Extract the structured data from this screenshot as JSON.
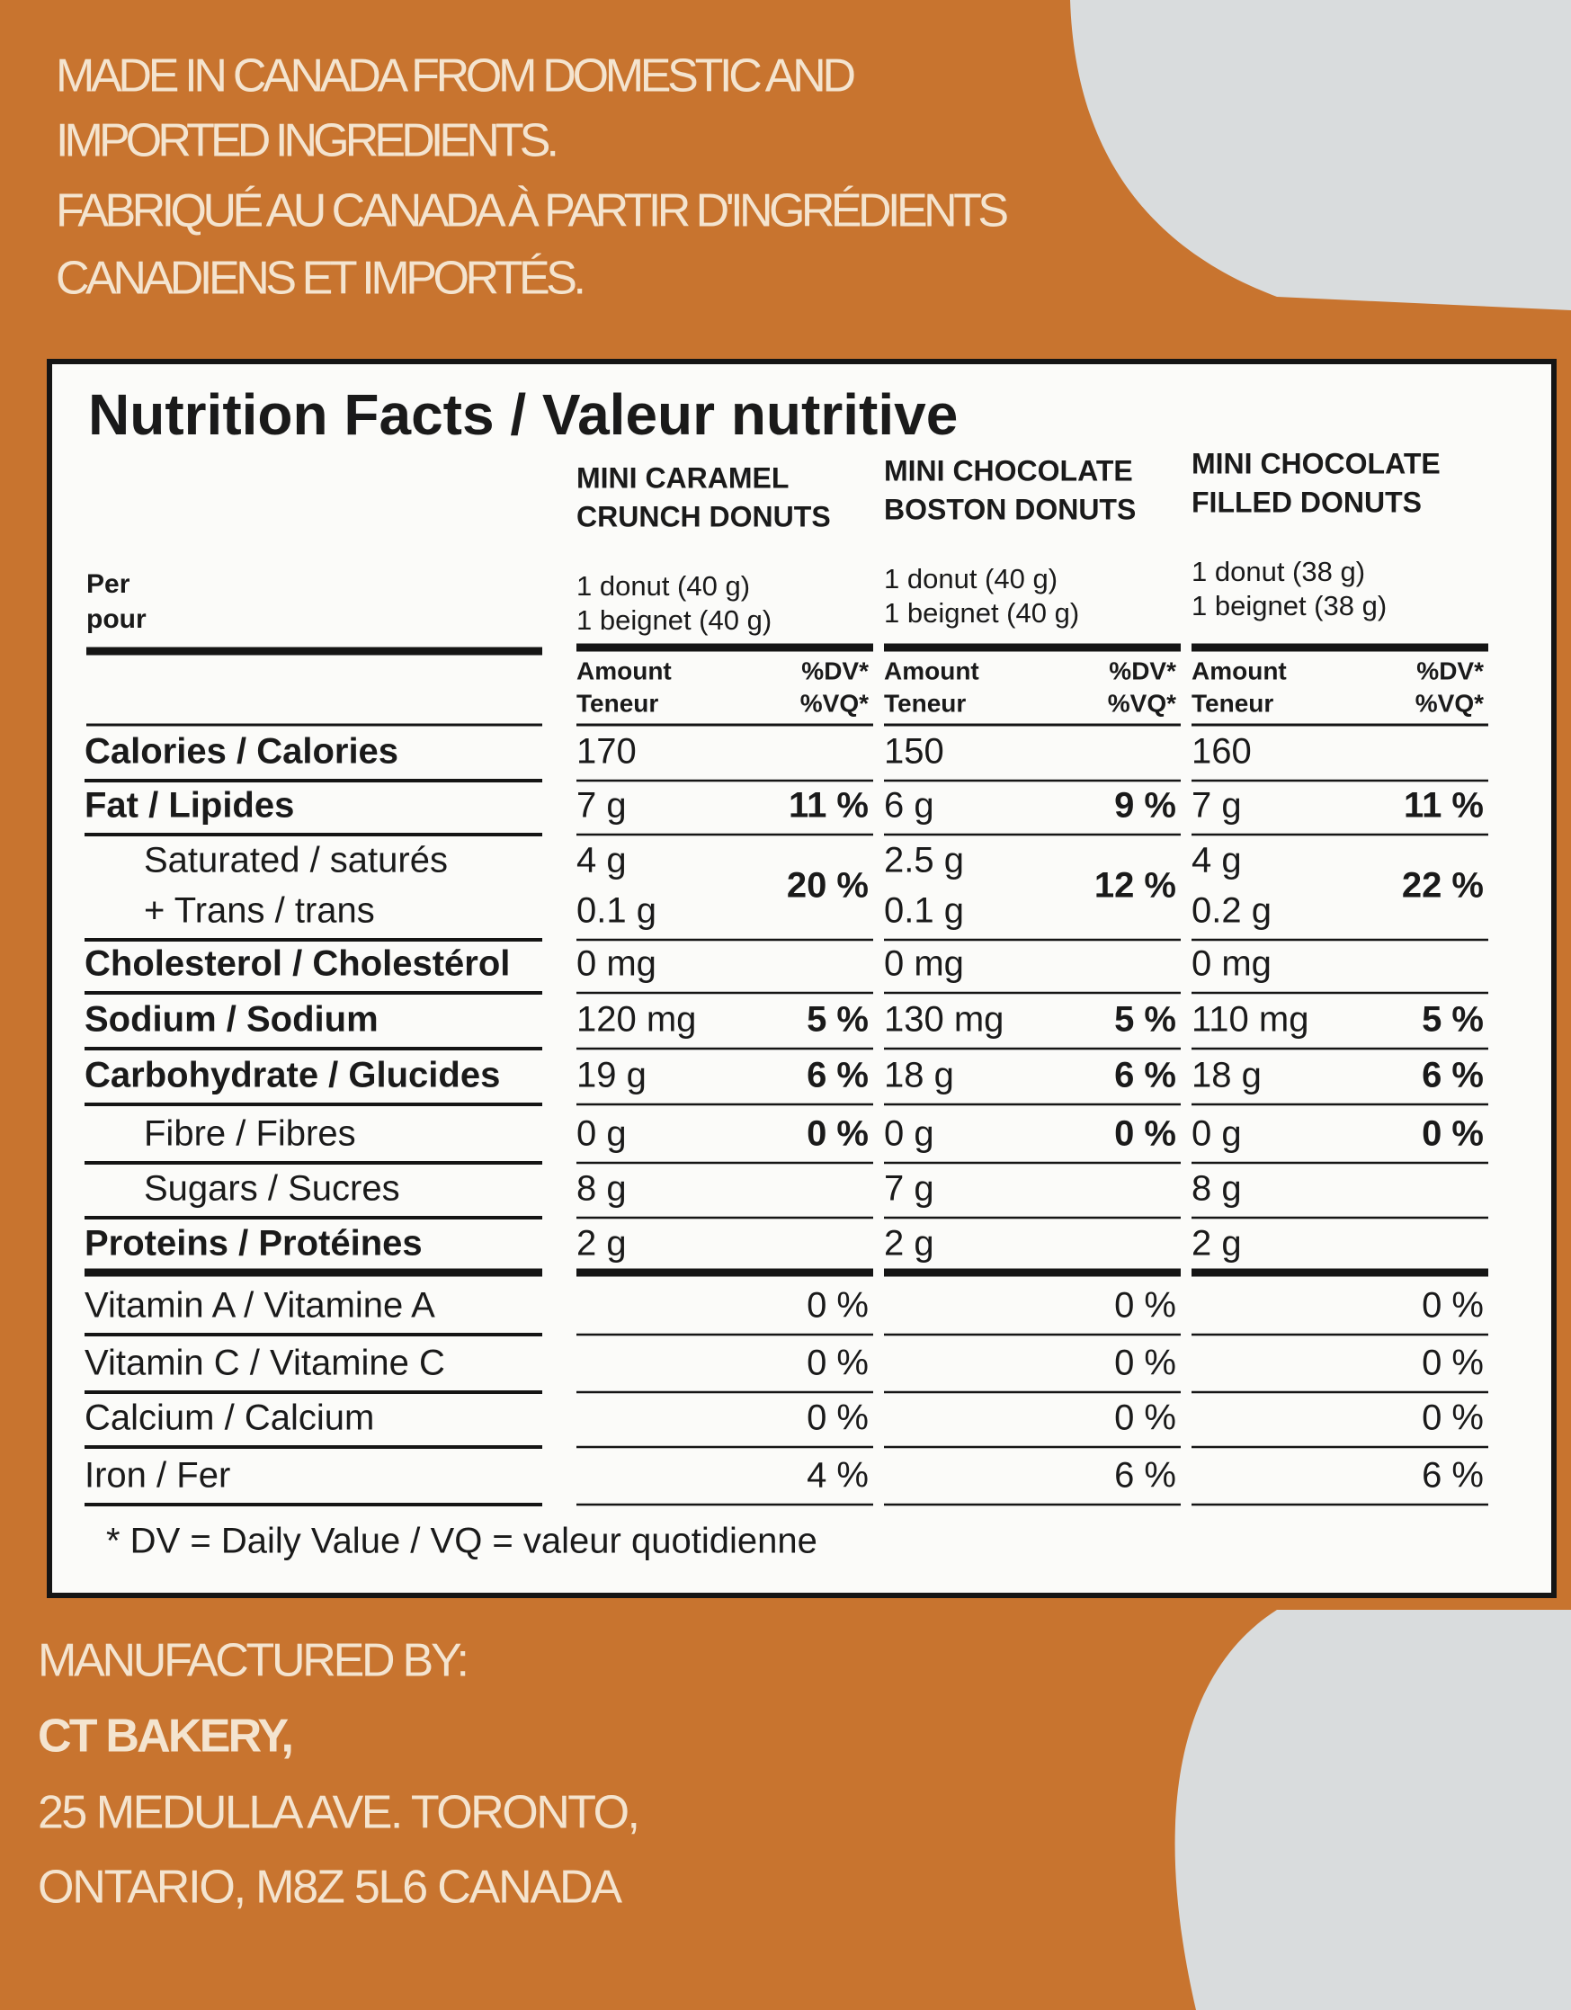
{
  "header": {
    "lines": [
      "MADE IN CANADA FROM DOMESTIC AND",
      "IMPORTED INGREDIENTS.",
      "FABRIQUÉ AU CANADA À PARTIR D'INGRÉDIENTS",
      "CANADIENS ET IMPORTÉS."
    ]
  },
  "table": {
    "title": "Nutrition Facts / Valeur nutritive",
    "per_label": [
      "Per",
      "pour"
    ],
    "products": [
      {
        "name": [
          "MINI CARAMEL",
          "CRUNCH DONUTS"
        ],
        "serving": [
          "1 donut (40 g)",
          "1 beignet (40 g)"
        ],
        "amount_label": [
          "Amount",
          "Teneur"
        ],
        "dv_label": [
          "%DV*",
          "%VQ*"
        ]
      },
      {
        "name": [
          "MINI CHOCOLATE",
          "BOSTON DONUTS"
        ],
        "serving": [
          "1 donut (40 g)",
          "1 beignet (40 g)"
        ],
        "amount_label": [
          "Amount",
          "Teneur"
        ],
        "dv_label": [
          "%DV*",
          "%VQ*"
        ]
      },
      {
        "name": [
          "MINI CHOCOLATE",
          "FILLED DONUTS"
        ],
        "serving": [
          "1 donut (38 g)",
          "1 beignet (38 g)"
        ],
        "amount_label": [
          "Amount",
          "Teneur"
        ],
        "dv_label": [
          "%DV*",
          "%VQ*"
        ]
      }
    ],
    "rows": [
      {
        "label": "Calories / Calories",
        "bold": true,
        "cells": [
          {
            "amount": "170"
          },
          {
            "amount": "150"
          },
          {
            "amount": "160"
          }
        ]
      },
      {
        "label": "Fat / Lipides",
        "bold": true,
        "cells": [
          {
            "amount": "7 g",
            "dv": "11 %"
          },
          {
            "amount": "6 g",
            "dv": "9 %"
          },
          {
            "amount": "7 g",
            "dv": "11 %"
          }
        ]
      },
      {
        "label": "Saturated / saturés",
        "indent": true,
        "shared_dv": true,
        "cells": [
          {
            "amount": "4 g",
            "dv": "20 %"
          },
          {
            "amount": "2.5 g",
            "dv": "12 %"
          },
          {
            "amount": "4 g",
            "dv": "22 %"
          }
        ]
      },
      {
        "label": "+ Trans / trans",
        "indent": true,
        "cells": [
          {
            "amount": "0.1 g"
          },
          {
            "amount": "0.1 g"
          },
          {
            "amount": "0.2 g"
          }
        ]
      },
      {
        "label": "Cholesterol / Cholestérol",
        "bold": true,
        "cells": [
          {
            "amount": "0 mg"
          },
          {
            "amount": "0 mg"
          },
          {
            "amount": "0 mg"
          }
        ]
      },
      {
        "label": "Sodium / Sodium",
        "bold": true,
        "cells": [
          {
            "amount": "120 mg",
            "dv": "5 %"
          },
          {
            "amount": "130 mg",
            "dv": "5 %"
          },
          {
            "amount": "110 mg",
            "dv": "5 %"
          }
        ]
      },
      {
        "label": "Carbohydrate / Glucides",
        "bold": true,
        "cells": [
          {
            "amount": "19 g",
            "dv": "6 %"
          },
          {
            "amount": "18 g",
            "dv": "6 %"
          },
          {
            "amount": "18 g",
            "dv": "6 %"
          }
        ]
      },
      {
        "label": "Fibre / Fibres",
        "indent": true,
        "cells": [
          {
            "amount": "0 g",
            "dv": "0 %"
          },
          {
            "amount": "0 g",
            "dv": "0 %"
          },
          {
            "amount": "0 g",
            "dv": "0 %"
          }
        ]
      },
      {
        "label": "Sugars / Sucres",
        "indent": true,
        "cells": [
          {
            "amount": "8 g"
          },
          {
            "amount": "7 g"
          },
          {
            "amount": "8 g"
          }
        ]
      },
      {
        "label": "Proteins / Protéines",
        "bold": true,
        "thick_rule": true,
        "cells": [
          {
            "amount": "2 g"
          },
          {
            "amount": "2 g"
          },
          {
            "amount": "2 g"
          }
        ]
      },
      {
        "label": "Vitamin A / Vitamine A",
        "cells": [
          {
            "dv": "0 %"
          },
          {
            "dv": "0 %"
          },
          {
            "dv": "0 %"
          }
        ]
      },
      {
        "label": "Vitamin C / Vitamine C",
        "cells": [
          {
            "dv": "0 %"
          },
          {
            "dv": "0 %"
          },
          {
            "dv": "0 %"
          }
        ]
      },
      {
        "label": "Calcium / Calcium",
        "cells": [
          {
            "dv": "0 %"
          },
          {
            "dv": "0 %"
          },
          {
            "dv": "0 %"
          }
        ]
      },
      {
        "label": "Iron / Fer",
        "cells": [
          {
            "dv": "4 %"
          },
          {
            "dv": "6 %"
          },
          {
            "dv": "6 %"
          }
        ]
      }
    ],
    "footnote": "* DV = Daily Value / VQ = valeur quotidienne"
  },
  "footer": {
    "lines": [
      "MANUFACTURED BY:",
      "CT BAKERY,",
      "25 MEDULLA AVE. TORONTO,",
      "ONTARIO, M8Z 5L6 CANADA"
    ]
  }
}
